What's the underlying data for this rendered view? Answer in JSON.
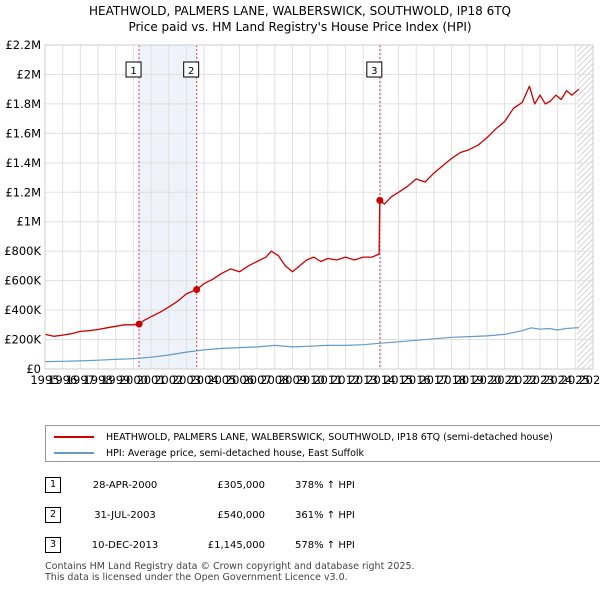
{
  "title_line1": "HEATHWOLD, PALMERS LANE, WALBERSWICK, SOUTHWOLD, IP18 6TQ",
  "title_line2": "Price paid vs. HM Land Registry's House Price Index (HPI)",
  "chart_data": {
    "type": "line",
    "xlim": [
      1995,
      2026
    ],
    "ylim": [
      0,
      2200000
    ],
    "y_ticks": [
      {
        "value": 0,
        "label": "£0"
      },
      {
        "value": 200000,
        "label": "£200K"
      },
      {
        "value": 400000,
        "label": "£400K"
      },
      {
        "value": 600000,
        "label": "£600K"
      },
      {
        "value": 800000,
        "label": "£800K"
      },
      {
        "value": 1000000,
        "label": "£1M"
      },
      {
        "value": 1200000,
        "label": "£1.2M"
      },
      {
        "value": 1400000,
        "label": "£1.4M"
      },
      {
        "value": 1600000,
        "label": "£1.6M"
      },
      {
        "value": 1800000,
        "label": "£1.8M"
      },
      {
        "value": 2000000,
        "label": "£2M"
      },
      {
        "value": 2200000,
        "label": "£2.2M"
      }
    ],
    "x_ticks": [
      "1995",
      "1996",
      "1997",
      "1998",
      "1999",
      "2000",
      "2001",
      "2002",
      "2003",
      "2004",
      "2005",
      "2006",
      "2007",
      "2008",
      "2009",
      "2010",
      "2011",
      "2012",
      "2013",
      "2014",
      "2015",
      "2016",
      "2017",
      "2018",
      "2019",
      "2020",
      "2021",
      "2022",
      "2023",
      "2024",
      "2025",
      "2026"
    ],
    "grid": true,
    "series": [
      {
        "name": "HEATHWOLD, PALMERS LANE, WALBERSWICK, SOUTHWOLD, IP18 6TQ (semi-detached house)",
        "color": "#cc0000",
        "x": [
          1995.0,
          1995.5,
          1996.0,
          1996.5,
          1997.0,
          1997.5,
          1998.0,
          1998.5,
          1999.0,
          1999.5,
          2000.0,
          2000.32,
          2000.6,
          2001.0,
          2001.5,
          2002.0,
          2002.5,
          2003.0,
          2003.58,
          2004.0,
          2004.5,
          2005.0,
          2005.5,
          2006.0,
          2006.5,
          2007.0,
          2007.5,
          2007.8,
          2008.2,
          2008.6,
          2009.0,
          2009.4,
          2009.8,
          2010.2,
          2010.6,
          2011.0,
          2011.5,
          2012.0,
          2012.5,
          2013.0,
          2013.5,
          2013.9,
          2013.94,
          2014.2,
          2014.6,
          2015.0,
          2015.5,
          2016.0,
          2016.5,
          2017.0,
          2017.5,
          2018.0,
          2018.5,
          2019.0,
          2019.5,
          2020.0,
          2020.5,
          2021.0,
          2021.5,
          2022.0,
          2022.4,
          2022.7,
          2023.0,
          2023.3,
          2023.6,
          2023.9,
          2024.2,
          2024.5,
          2024.8,
          2025.0,
          2025.2
        ],
        "values": [
          235000,
          222000,
          230000,
          240000,
          255000,
          260000,
          268000,
          280000,
          290000,
          300000,
          300000,
          305000,
          330000,
          355000,
          385000,
          420000,
          460000,
          510000,
          540000,
          580000,
          610000,
          650000,
          680000,
          660000,
          700000,
          730000,
          760000,
          800000,
          770000,
          700000,
          660000,
          700000,
          740000,
          760000,
          730000,
          750000,
          740000,
          760000,
          740000,
          760000,
          760000,
          780000,
          1145000,
          1120000,
          1170000,
          1200000,
          1240000,
          1290000,
          1270000,
          1330000,
          1380000,
          1430000,
          1470000,
          1490000,
          1520000,
          1570000,
          1630000,
          1680000,
          1770000,
          1810000,
          1920000,
          1800000,
          1860000,
          1800000,
          1820000,
          1860000,
          1830000,
          1890000,
          1860000,
          1880000,
          1900000
        ]
      },
      {
        "name": "HPI: Average price, semi-detached house, East Suffolk",
        "color": "#6699cc",
        "x": [
          1995.0,
          1996.0,
          1997.0,
          1998.0,
          1999.0,
          2000.0,
          2001.0,
          2002.0,
          2003.0,
          2004.0,
          2005.0,
          2006.0,
          2007.0,
          2008.0,
          2009.0,
          2010.0,
          2011.0,
          2012.0,
          2013.0,
          2014.0,
          2015.0,
          2016.0,
          2017.0,
          2018.0,
          2019.0,
          2020.0,
          2021.0,
          2022.0,
          2022.5,
          2023.0,
          2023.5,
          2024.0,
          2024.5,
          2025.0,
          2025.2
        ],
        "values": [
          50000,
          52000,
          55000,
          60000,
          65000,
          70000,
          80000,
          95000,
          115000,
          130000,
          140000,
          145000,
          150000,
          160000,
          150000,
          155000,
          160000,
          160000,
          165000,
          175000,
          185000,
          195000,
          205000,
          215000,
          220000,
          225000,
          235000,
          260000,
          280000,
          270000,
          275000,
          265000,
          275000,
          280000,
          280000
        ]
      }
    ],
    "sales": [
      {
        "num": "1",
        "x": 2000.32,
        "value": 305000
      },
      {
        "num": "2",
        "x": 2003.58,
        "value": 540000
      },
      {
        "num": "3",
        "x": 2013.94,
        "value": 1145000
      }
    ],
    "shaded_ranges": [
      [
        2000.32,
        2003.58
      ]
    ],
    "future_hatch_from": 2025.1
  },
  "legend": {
    "property_label": "HEATHWOLD, PALMERS LANE, WALBERSWICK, SOUTHWOLD, IP18 6TQ (semi-detached house)",
    "hpi_label": "HPI: Average price, semi-detached house, East Suffolk",
    "property_color": "#cc0000",
    "hpi_color": "#6699cc"
  },
  "sales_table": [
    {
      "num": "1",
      "date": "28-APR-2000",
      "price": "£305,000",
      "hpi": "378% ↑ HPI"
    },
    {
      "num": "2",
      "date": "31-JUL-2003",
      "price": "£540,000",
      "hpi": "361% ↑ HPI"
    },
    {
      "num": "3",
      "date": "10-DEC-2013",
      "price": "£1,145,000",
      "hpi": "578% ↑ HPI"
    }
  ],
  "footer_line1": "Contains HM Land Registry data © Crown copyright and database right 2025.",
  "footer_line2": "This data is licensed under the Open Government Licence v3.0."
}
